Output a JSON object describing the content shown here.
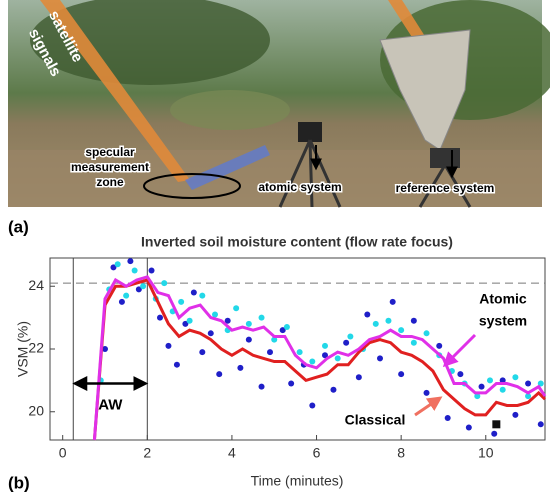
{
  "photo": {
    "panel_label": "(a)",
    "labels": {
      "satellite": [
        "satellite",
        "signals"
      ],
      "zone": [
        "specular",
        "measurement",
        "zone"
      ],
      "atomic": "atomic system",
      "reference": "reference system"
    }
  },
  "chart_data": {
    "type": "scatter-line",
    "panel_label": "(b)",
    "title": "Inverted soil moisture content (flow rate focus)",
    "x_label": "Time (minutes)",
    "y_label": "VSM (%)",
    "xlim": [
      -0.3,
      11.4
    ],
    "ylim": [
      19.1,
      24.9
    ],
    "xticks": [
      0,
      2,
      4,
      6,
      8,
      10
    ],
    "yticks": [
      20,
      22,
      24
    ],
    "reference_line": 24.1,
    "vertical_lines": [
      0.25,
      2
    ],
    "aw_label": "AW",
    "aw_y": 20.9,
    "scatter": [
      {
        "color": "#1f1fc8",
        "x": [
          1.0,
          1.2,
          1.4,
          1.6,
          1.8,
          2.1,
          2.3,
          2.5,
          2.7,
          2.9,
          3.1,
          3.3,
          3.5,
          3.7,
          3.9,
          4.2,
          4.4,
          4.7,
          4.9,
          5.2,
          5.4,
          5.7,
          5.9,
          6.2,
          6.4,
          6.7,
          7.0,
          7.2,
          7.5,
          7.8,
          8.0,
          8.3,
          8.6,
          8.9,
          9.1,
          9.4,
          9.6,
          9.9,
          10.2,
          10.4,
          10.7,
          11.0,
          11.3
        ],
        "values": [
          22.0,
          24.6,
          23.5,
          24.8,
          23.9,
          24.5,
          23.0,
          22.1,
          21.5,
          22.8,
          23.8,
          21.9,
          22.5,
          21.2,
          22.9,
          21.4,
          22.3,
          20.8,
          21.9,
          22.6,
          20.9,
          21.5,
          20.2,
          21.8,
          20.7,
          22.2,
          21.1,
          23.1,
          21.7,
          23.5,
          21.2,
          22.9,
          20.6,
          22.1,
          19.8,
          21.2,
          19.5,
          20.8,
          19.3,
          21.0,
          19.9,
          20.9,
          19.6
        ]
      },
      {
        "color": "#22d8e8",
        "x": [
          0.9,
          1.1,
          1.3,
          1.5,
          1.7,
          1.9,
          2.2,
          2.4,
          2.6,
          2.8,
          3.0,
          3.3,
          3.6,
          3.9,
          4.1,
          4.4,
          4.7,
          5.0,
          5.3,
          5.6,
          5.9,
          6.2,
          6.5,
          6.8,
          7.1,
          7.4,
          7.7,
          8.0,
          8.3,
          8.6,
          8.9,
          9.2,
          9.5,
          9.8,
          10.1,
          10.4,
          10.7,
          11.0,
          11.3
        ],
        "values": [
          21.0,
          23.9,
          24.7,
          23.7,
          24.5,
          24.0,
          23.6,
          24.1,
          23.2,
          23.5,
          22.9,
          23.7,
          23.1,
          22.6,
          23.3,
          22.8,
          23.0,
          22.3,
          22.7,
          21.9,
          21.6,
          22.1,
          21.7,
          22.4,
          22.0,
          22.8,
          22.9,
          22.6,
          22.2,
          22.5,
          21.8,
          21.3,
          20.9,
          20.5,
          21.0,
          20.7,
          21.1,
          20.5,
          20.9
        ]
      }
    ],
    "x": [
      0.75,
      1.0,
      1.25,
      1.5,
      1.75,
      2.0,
      2.25,
      2.5,
      2.75,
      3.0,
      3.25,
      3.5,
      3.75,
      4.0,
      4.25,
      4.5,
      4.75,
      5.0,
      5.25,
      5.5,
      5.75,
      6.0,
      6.25,
      6.5,
      6.75,
      7.0,
      7.25,
      7.5,
      7.75,
      8.0,
      8.25,
      8.5,
      8.75,
      9.0,
      9.25,
      9.5,
      9.75,
      10.0,
      10.25,
      10.5,
      10.75,
      11.0,
      11.25,
      11.4
    ],
    "series": [
      {
        "name": "Classical",
        "color": "#e02020",
        "values": [
          19.1,
          23.4,
          24.0,
          24.0,
          24.1,
          24.2,
          23.5,
          22.8,
          22.4,
          22.6,
          22.5,
          22.3,
          22.0,
          21.8,
          22.0,
          21.8,
          21.7,
          21.6,
          21.6,
          21.3,
          21.0,
          21.1,
          21.2,
          21.5,
          21.5,
          21.9,
          22.2,
          22.3,
          22.2,
          21.9,
          21.8,
          21.6,
          21.3,
          20.7,
          20.4,
          20.1,
          19.9,
          19.9,
          20.3,
          20.2,
          20.2,
          20.3,
          20.6,
          20.4
        ]
      },
      {
        "name": [
          "Atomic",
          "system"
        ],
        "color": "#e030e8",
        "values": [
          19.1,
          23.6,
          24.2,
          24.0,
          24.2,
          24.3,
          23.8,
          23.7,
          23.0,
          23.3,
          23.4,
          23.0,
          22.9,
          22.6,
          22.7,
          22.6,
          22.7,
          22.4,
          22.4,
          21.8,
          21.5,
          21.4,
          21.7,
          21.9,
          21.8,
          22.0,
          22.3,
          22.4,
          22.6,
          22.4,
          22.4,
          22.3,
          22.0,
          21.7,
          20.9,
          20.9,
          20.6,
          20.6,
          20.9,
          20.9,
          20.8,
          20.6,
          20.8,
          20.5
        ]
      }
    ],
    "marker": {
      "x": 10.25,
      "y": 19.6
    }
  }
}
